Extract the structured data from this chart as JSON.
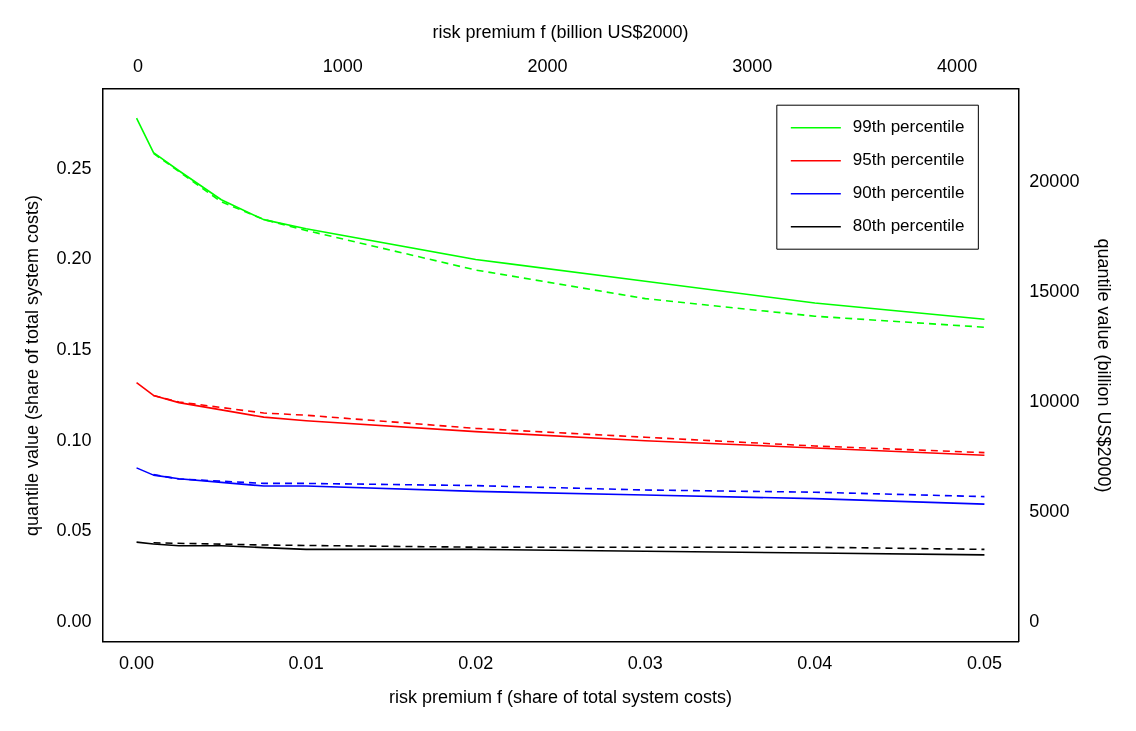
{
  "chart_data": {
    "type": "line",
    "xlabel": "risk premium f (share of total system costs)",
    "ylabel": "quantile value (share of total system costs)",
    "x2label": "risk premium f (billion US$2000)",
    "y2label": "quantile value (billion US$2000)",
    "xlim": [
      -0.002,
      0.052
    ],
    "xticks": [
      {
        "value": 0,
        "label": "0.00"
      },
      {
        "value": 0.01,
        "label": "0.01"
      },
      {
        "value": 0.02,
        "label": "0.02"
      },
      {
        "value": 0.03,
        "label": "0.03"
      },
      {
        "value": 0.04,
        "label": "0.04"
      },
      {
        "value": 0.05,
        "label": "0.05"
      }
    ],
    "ylim": [
      -0.011,
      0.294
    ],
    "yticks": [
      {
        "value": 0,
        "label": "0.00"
      },
      {
        "value": 0.05,
        "label": "0.05"
      },
      {
        "value": 0.1,
        "label": "0.10"
      },
      {
        "value": 0.15,
        "label": "0.15"
      },
      {
        "value": 0.2,
        "label": "0.20"
      },
      {
        "value": 0.25,
        "label": "0.25"
      }
    ],
    "x2lim": [
      -173,
      4299
    ],
    "x2ticks": [
      0,
      1000,
      2000,
      3000,
      4000
    ],
    "y2lim": [
      -900,
      24220
    ],
    "y2ticks": [
      0,
      5000,
      10000,
      15000,
      20000
    ],
    "grid": false,
    "legend": "top right",
    "marker": "none",
    "series": [
      {
        "name": "99th percentile",
        "color": "#00ff00",
        "line_style": "solid",
        "x": [
          0,
          0.001,
          0.0025,
          0.005,
          0.0075,
          0.01,
          0.02,
          0.03,
          0.04,
          0.05
        ],
        "values": [
          0.278,
          0.259,
          0.249,
          0.233,
          0.222,
          0.217,
          0.2,
          0.188,
          0.176,
          0.167
        ]
      },
      {
        "name": "95th percentile",
        "color": "#ff0000",
        "line_style": "solid",
        "x": [
          0,
          0.001,
          0.0025,
          0.005,
          0.0075,
          0.01,
          0.02,
          0.03,
          0.04,
          0.05
        ],
        "values": [
          0.132,
          0.125,
          0.121,
          0.117,
          0.113,
          0.111,
          0.105,
          0.1,
          0.096,
          0.092
        ]
      },
      {
        "name": "90th percentile",
        "color": "#0000ff",
        "line_style": "solid",
        "x": [
          0,
          0.001,
          0.0025,
          0.005,
          0.0075,
          0.01,
          0.02,
          0.03,
          0.04,
          0.05
        ],
        "values": [
          0.085,
          0.081,
          0.079,
          0.077,
          0.075,
          0.075,
          0.072,
          0.07,
          0.068,
          0.065
        ]
      },
      {
        "name": "80th percentile",
        "color": "#000000",
        "line_style": "solid",
        "x": [
          0,
          0.001,
          0.0025,
          0.005,
          0.0075,
          0.01,
          0.02,
          0.03,
          0.04,
          0.05
        ],
        "values": [
          0.044,
          0.043,
          0.042,
          0.042,
          0.041,
          0.04,
          0.04,
          0.039,
          0.038,
          0.037
        ]
      },
      {
        "color": "#00ff00",
        "line_style": "dashed",
        "axis": "y2",
        "x": [
          0.001,
          0.005,
          0.0075,
          0.01,
          0.02,
          0.03,
          0.04,
          0.05
        ],
        "values": [
          21300,
          19100,
          18300,
          17800,
          16000,
          14700,
          13900,
          13400
        ]
      },
      {
        "color": "#ff0000",
        "line_style": "dashed",
        "axis": "y2",
        "x": [
          0.001,
          0.0025,
          0.0075,
          0.01,
          0.02,
          0.03,
          0.04,
          0.05
        ],
        "values": [
          10300,
          10000,
          9500,
          9400,
          8800,
          8400,
          8000,
          7700
        ]
      },
      {
        "color": "#0000ff",
        "line_style": "dashed",
        "axis": "y2",
        "x": [
          0.001,
          0.0025,
          0.0075,
          0.01,
          0.02,
          0.03,
          0.04,
          0.05
        ],
        "values": [
          6700,
          6500,
          6300,
          6300,
          6200,
          6000,
          5900,
          5700
        ]
      },
      {
        "color": "#000000",
        "line_style": "dashed",
        "axis": "y2",
        "x": [
          0.001,
          0.0075,
          0.02,
          0.03,
          0.04,
          0.05
        ],
        "values": [
          3600,
          3500,
          3400,
          3400,
          3400,
          3300
        ]
      }
    ]
  }
}
